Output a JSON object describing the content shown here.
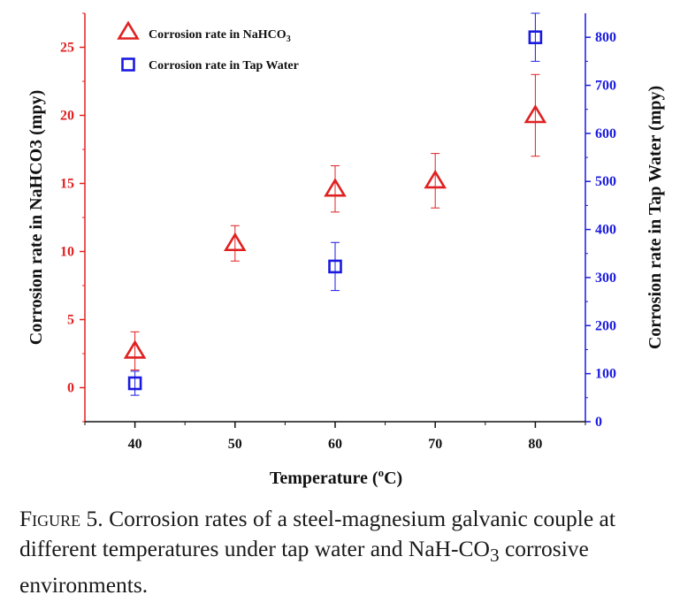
{
  "chart_data": {
    "type": "scatter",
    "x": [
      40,
      50,
      60,
      70,
      80
    ],
    "xlabel_prefix": "Temperature (",
    "xlabel_sup": "o",
    "xlabel_suffix": "C)",
    "xlim": [
      35,
      85
    ],
    "xticks": [
      40,
      50,
      60,
      70,
      80
    ],
    "ylabel_left": "Corrosion rate in NaHCO3 (mpy)",
    "ylim_left": [
      -2.5,
      27.5
    ],
    "yticks_left": [
      0,
      5,
      10,
      15,
      20,
      25
    ],
    "ylabel_right": "Corrosion rate in Tap Water (mpy)",
    "ylim_right": [
      0,
      850
    ],
    "yticks_right": [
      0,
      100,
      200,
      300,
      400,
      500,
      600,
      700,
      800
    ],
    "grid": false,
    "legend_position": "top-left",
    "series": [
      {
        "name_prefix": "Corrosion rate in NaHCO",
        "name_sub": "3",
        "axis": "left",
        "marker": "triangle",
        "color": "#e02020",
        "x": [
          40,
          50,
          60,
          70,
          80
        ],
        "y": [
          2.7,
          10.6,
          14.6,
          15.2,
          20.0
        ],
        "err": [
          1.4,
          1.3,
          1.7,
          2.0,
          3.0
        ]
      },
      {
        "name": "Corrosion rate in Tap Water",
        "axis": "right",
        "marker": "square",
        "color": "#1a1ae0",
        "x": [
          40,
          60,
          80
        ],
        "y": [
          80,
          323,
          800
        ],
        "err": [
          25,
          50,
          50
        ]
      }
    ]
  },
  "caption": {
    "label": "Figure 5.",
    "text_before_sub": " Corrosion rates of a steel-magnesium galvanic couple at different temperatures under tap water and NaH-CO",
    "sub": "3",
    "text_after_sub": " corrosive environments."
  },
  "colors": {
    "left_axis": "#e02020",
    "right_axis": "#1a1ae0",
    "bottom_axis": "#111111"
  }
}
